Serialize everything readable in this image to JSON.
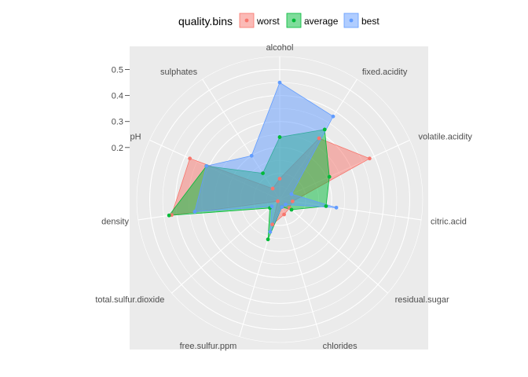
{
  "chart_data": {
    "type": "radar",
    "legend": {
      "title": "quality.bins",
      "position": "top"
    },
    "categories": [
      "alcohol",
      "fixed.acidity",
      "volatile.acidity",
      "citric.acid",
      "residual.sugar",
      "chlorides",
      "free.sulfur.ppm",
      "total.sulfur.dioxide",
      "density",
      "pH",
      "sulphates"
    ],
    "category_labels_shown": [
      "alcohol",
      "fixed.acidity",
      "volatile.acidity",
      "citric.acid",
      "residual.sugar",
      "chlorides",
      "free.sulfur.ppm",
      "total.sulfur.dioxide",
      "density",
      "pH",
      "sulphates"
    ],
    "series": [
      {
        "name": "worst",
        "color": "#F8766D",
        "values": [
          0.08,
          0.28,
          0.38,
          0.05,
          0.05,
          0.06,
          0.1,
          0.01,
          0.42,
          0.38,
          0.05
        ]
      },
      {
        "name": "average",
        "color": "#00BA38",
        "values": [
          0.24,
          0.32,
          0.21,
          0.18,
          0.06,
          0.03,
          0.16,
          0.05,
          0.43,
          0.31,
          0.12
        ]
      },
      {
        "name": "best",
        "color": "#619CFF",
        "values": [
          0.45,
          0.38,
          0.05,
          0.22,
          0.03,
          0.03,
          0.13,
          0.04,
          0.33,
          0.31,
          0.2
        ]
      }
    ],
    "yticks": [
      0.2,
      0.3,
      0.4,
      0.5
    ],
    "ylim": [
      0.0,
      0.55
    ],
    "grid": true
  }
}
